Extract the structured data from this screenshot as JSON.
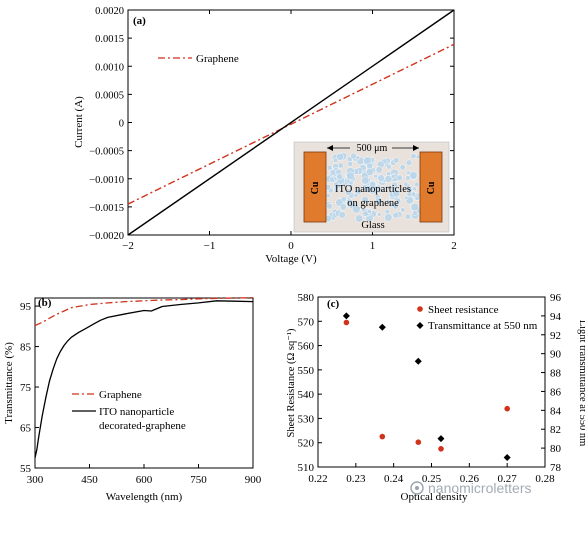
{
  "colors": {
    "graphene": "#d1321b",
    "ito": "#000000",
    "copper": "#e07a2c",
    "substrate": "#e8e1dc",
    "particles": "#bcd6ea",
    "sheet_resistance": "#d1321b",
    "transmittance_marker": "#000000",
    "watermark": "#9aa3ad"
  },
  "watermark": "nanomicroletters",
  "chart_data": [
    {
      "panel": "(a)",
      "type": "line",
      "xlabel": "Voltage (V)",
      "ylabel": "Current (A)",
      "xlim": [
        -2,
        2
      ],
      "ylim": [
        -0.002,
        0.002
      ],
      "xticks": [
        "−2",
        "−1",
        "0",
        "1",
        "2"
      ],
      "yticks": [
        "0.0020",
        "0.0015",
        "0.0010",
        "0.0005",
        "0",
        "−0.0005",
        "−0.0010",
        "−0.0015",
        "−0.0020"
      ],
      "series": [
        {
          "name": "Graphene",
          "style": "dash-dot",
          "color": "#d1321b",
          "x": [
            -2,
            2
          ],
          "y": [
            -0.00145,
            0.00139
          ]
        },
        {
          "style": "solid",
          "color": "#000000",
          "x": [
            -2,
            2
          ],
          "y": [
            -0.002,
            0.002
          ]
        }
      ],
      "inset": {
        "dimension": "500 μm",
        "electrode_label": "Cu",
        "center_label_line1": "ITO nanoparticles",
        "center_label_line2": "on graphene",
        "substrate_label": "Glass"
      }
    },
    {
      "panel": "(b)",
      "type": "line",
      "xlabel": "Wavelength (nm)",
      "ylabel": "Transmittance (%)",
      "xlim": [
        300,
        900
      ],
      "ylim": [
        55,
        97
      ],
      "xticks": [
        "300",
        "450",
        "600",
        "750",
        "900"
      ],
      "yticks": [
        "95",
        "85",
        "75",
        "65",
        "55"
      ],
      "series": [
        {
          "name": "Graphene",
          "style": "dash-dot",
          "color": "#d1321b",
          "x": [
            300,
            320,
            340,
            360,
            380,
            400,
            450,
            500,
            550,
            600,
            650,
            700,
            750,
            800,
            850,
            900
          ],
          "y": [
            90.2,
            91.0,
            92.0,
            93.0,
            93.8,
            94.6,
            95.4,
            95.8,
            96.1,
            96.3,
            96.5,
            96.6,
            96.8,
            96.9,
            97.0,
            97.1
          ]
        },
        {
          "name": "ITO nanoparticle decorated-graphene",
          "style": "solid",
          "color": "#000000",
          "x": [
            300,
            305,
            310,
            320,
            330,
            340,
            350,
            360,
            370,
            380,
            390,
            400,
            420,
            440,
            460,
            480,
            500,
            550,
            600,
            620,
            650,
            700,
            750,
            800,
            850,
            900
          ],
          "y": [
            57.5,
            59.5,
            62.5,
            68.0,
            72.5,
            76.5,
            79.5,
            82.0,
            83.8,
            85.3,
            86.4,
            87.3,
            88.5,
            89.5,
            90.5,
            91.5,
            92.2,
            93.1,
            93.9,
            93.8,
            94.9,
            95.4,
            95.8,
            96.3,
            96.2,
            96.1
          ]
        }
      ]
    },
    {
      "panel": "(c)",
      "type": "scatter",
      "xlabel": "Optical density",
      "ylabel_left": "Sheet Resistance (Ω sq⁻¹)",
      "ylabel_right": "Light transmittance at 550 nm",
      "xlim": [
        0.22,
        0.28
      ],
      "ylim_left": [
        510,
        580
      ],
      "ylim_right": [
        78,
        96
      ],
      "xticks": [
        "0.22",
        "0.23",
        "0.24",
        "0.25",
        "0.26",
        "0.27",
        "0.28"
      ],
      "yticks_left": [
        "580",
        "570",
        "560",
        "550",
        "540",
        "530",
        "520",
        "510"
      ],
      "yticks_right": [
        "96",
        "94",
        "92",
        "90",
        "88",
        "86",
        "84",
        "82",
        "80",
        "78"
      ],
      "series": [
        {
          "name": "Sheet resistance",
          "axis": "left",
          "marker": "circle",
          "color": "#d1321b",
          "x": [
            0.2275,
            0.237,
            0.2465,
            0.2525,
            0.27
          ],
          "y": [
            569.5,
            522.5,
            520.2,
            517.5,
            534.0
          ]
        },
        {
          "name": "Transmittance at 550 nm",
          "axis": "right",
          "marker": "diamond",
          "color": "#000000",
          "x": [
            0.2275,
            0.237,
            0.2465,
            0.2525,
            0.27
          ],
          "y": [
            94.0,
            92.8,
            89.2,
            81.0,
            79.0
          ]
        }
      ]
    }
  ]
}
